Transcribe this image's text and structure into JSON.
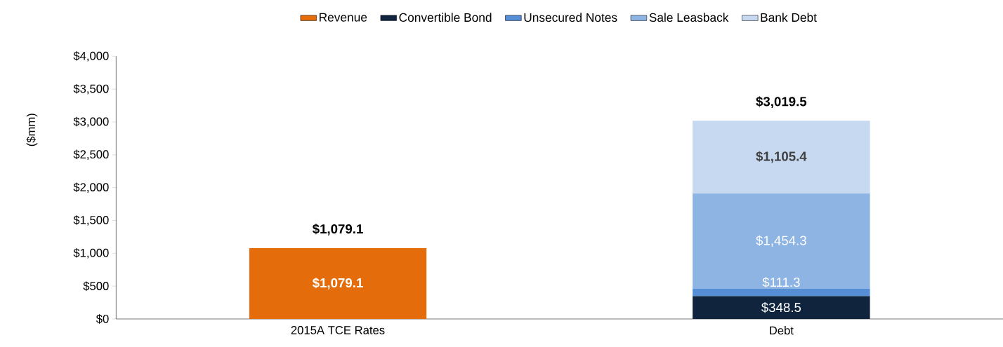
{
  "chart_data": {
    "type": "bar",
    "stacked": true,
    "ylabel": "($mm)",
    "categories": [
      "2015A TCE Rates",
      "Debt"
    ],
    "series": [
      {
        "name": "Revenue",
        "color": "#e46c0a",
        "values": [
          1079.1,
          null
        ],
        "value_labels": [
          "$1,079.1",
          null
        ]
      },
      {
        "name": "Convertible Bond",
        "color": "#10243e",
        "values": [
          null,
          348.5
        ],
        "value_labels": [
          null,
          "$348.5"
        ]
      },
      {
        "name": "Unsecured Notes",
        "color": "#558ed5",
        "values": [
          null,
          111.3
        ],
        "value_labels": [
          null,
          "$111.3"
        ]
      },
      {
        "name": "Sale Leasback",
        "color": "#8eb4e3",
        "values": [
          null,
          1454.3
        ],
        "value_labels": [
          null,
          "$1,454.3"
        ]
      },
      {
        "name": "Bank Debt",
        "color": "#c6d9f1",
        "values": [
          null,
          1105.4
        ],
        "value_labels": [
          null,
          "$1,105.4"
        ]
      }
    ],
    "totals": [
      "$1,079.1",
      "$3,019.5"
    ],
    "ylim": [
      0,
      4000
    ],
    "yticks": [
      {
        "value": 0,
        "label": "$0"
      },
      {
        "value": 500,
        "label": "$500"
      },
      {
        "value": 1000,
        "label": "$1,000"
      },
      {
        "value": 1500,
        "label": "$1,500"
      },
      {
        "value": 2000,
        "label": "$2,000"
      },
      {
        "value": 2500,
        "label": "$2,500"
      },
      {
        "value": 3000,
        "label": "$3,000"
      },
      {
        "value": 3500,
        "label": "$3,500"
      },
      {
        "value": 4000,
        "label": "$4,000"
      }
    ],
    "legend": "top",
    "grid": false
  }
}
